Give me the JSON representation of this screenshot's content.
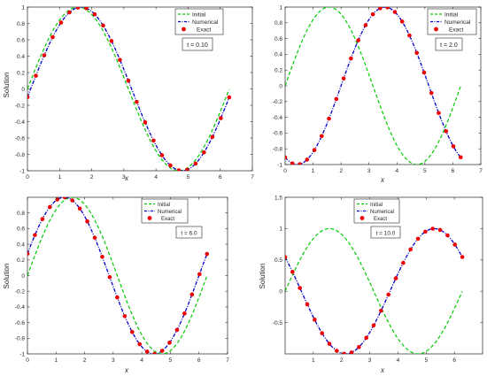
{
  "chart_data": [
    {
      "type": "line",
      "title": "",
      "xlabel": "x",
      "ylabel": "Solution",
      "xlim": [
        0,
        7
      ],
      "ylim": [
        -1,
        1
      ],
      "xticks": [
        "0",
        "1",
        "2",
        "3",
        "4",
        "5",
        "6",
        "7"
      ],
      "yticks": [
        "-1",
        "-0.8",
        "-0.6",
        "-0.4",
        "-0.2",
        "0",
        "0.2",
        "0.4",
        "0.6",
        "0.8",
        "1"
      ],
      "y_tick_values": [
        -1,
        -0.8,
        -0.6,
        -0.4,
        -0.2,
        0,
        0.2,
        0.4,
        0.6,
        0.8,
        1
      ],
      "time_label": "t = 0.10",
      "shift": 0.1,
      "legend": [
        "Initial",
        "Numerical",
        "Exact"
      ],
      "legend_position": "top-right",
      "x_max_curve": 6.28,
      "exact_points": 25
    },
    {
      "type": "line",
      "title": "",
      "xlabel": "x",
      "ylabel": "",
      "xlim": [
        0,
        7
      ],
      "ylim": [
        -1,
        1
      ],
      "xticks": [
        "0",
        "1",
        "2",
        "3",
        "4",
        "5",
        "6",
        "7"
      ],
      "yticks": [
        "-1",
        "-0.8",
        "-0.6",
        "-0.4",
        "-0.2",
        "0",
        "0.2",
        "0.4",
        "0.6",
        "0.8",
        "1"
      ],
      "y_tick_values": [
        -1,
        -0.8,
        -0.6,
        -0.4,
        -0.2,
        0,
        0.2,
        0.4,
        0.6,
        0.8,
        1
      ],
      "time_label": "t = 2.0",
      "shift": 2.0,
      "legend": [
        "Initial",
        "Numerical",
        "Exact"
      ],
      "legend_position": "top-right",
      "x_max_curve": 6.28,
      "exact_points": 25
    },
    {
      "type": "line",
      "title": "",
      "xlabel": "x",
      "ylabel": "Solution",
      "xlim": [
        0,
        7
      ],
      "ylim": [
        -1,
        1
      ],
      "xticks": [
        "0",
        "1",
        "2",
        "3",
        "4",
        "5",
        "6",
        "7"
      ],
      "yticks": [
        "-1",
        "-0.8",
        "-0.6",
        "-0.4",
        "-0.2",
        "0",
        "0.2",
        "0.4",
        "0.6",
        "0.8"
      ],
      "y_tick_values": [
        -1,
        -0.8,
        -0.6,
        -0.4,
        -0.2,
        0,
        0.2,
        0.4,
        0.6,
        0.8
      ],
      "time_label": "t = 6.0",
      "shift": 6.0,
      "legend": [
        "Initial",
        "Numerical",
        "Exact"
      ],
      "legend_position": "top-right",
      "x_max_curve": 6.28,
      "exact_points": 25
    },
    {
      "type": "line",
      "title": "",
      "xlabel": "x",
      "ylabel": "Solution",
      "xlim": [
        0,
        7
      ],
      "ylim": [
        -1,
        1.5
      ],
      "xticks": [
        "1",
        "2",
        "3",
        "4",
        "5",
        "6"
      ],
      "x_tick_values": [
        1,
        2,
        3,
        4,
        5,
        6
      ],
      "yticks": [
        "-0.5",
        "0",
        "0.5",
        "1",
        "1.5"
      ],
      "y_tick_values": [
        -0.5,
        0,
        0.5,
        1,
        1.5
      ],
      "time_label": "t = 10.0",
      "shift": 10.0,
      "legend": [
        "Initial",
        "Numerical",
        "Exact"
      ],
      "legend_position": "top-right",
      "x_max_curve": 6.28,
      "exact_points": 25
    }
  ],
  "colors": {
    "initial": "#00cc00",
    "numerical": "#0000cc",
    "exact": "#ee0000",
    "axis": "#262626"
  }
}
